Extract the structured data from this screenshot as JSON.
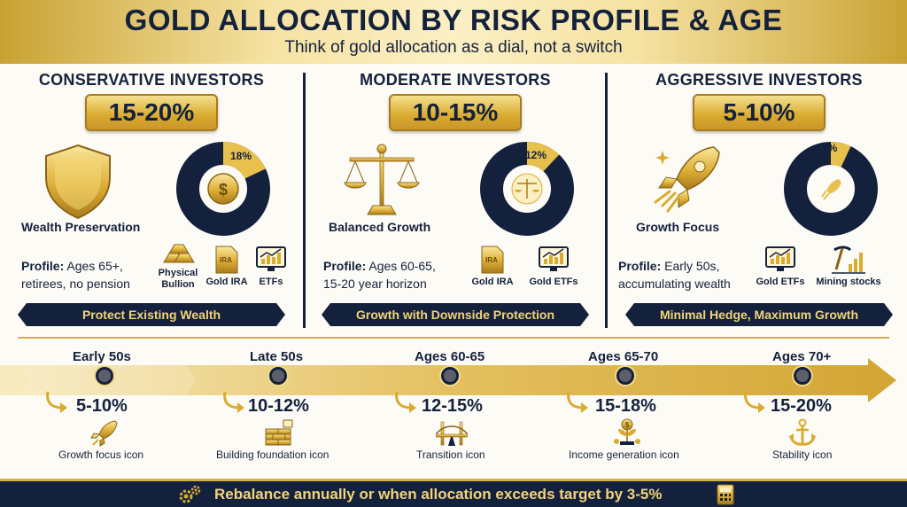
{
  "header": {
    "title": "GOLD ALLOCATION BY RISK PROFILE & AGE",
    "subtitle": "Think of gold allocation as a dial, not a switch"
  },
  "colors": {
    "navy": "#14213d",
    "gold": "#d9ab2f",
    "light_gold": "#f6e3a3"
  },
  "profiles": [
    {
      "heading": "CONSERVATIVE INVESTORS",
      "range": "15-20%",
      "focus_label": "Wealth Preservation",
      "hero_icon": "shield-icon",
      "donut_label": "18%",
      "donut_fraction": 0.18,
      "profile_label": "Profile:",
      "profile_text": "Ages 65+, retirees, no pension",
      "assets": [
        {
          "label": "Physical Bullion",
          "icon": "gold-bars-icon"
        },
        {
          "label": "Gold IRA",
          "icon": "ira-document-icon"
        },
        {
          "label": "ETFs",
          "icon": "chart-monitor-icon"
        }
      ],
      "banner": "Protect Existing Wealth"
    },
    {
      "heading": "MODERATE INVESTORS",
      "range": "10-15%",
      "focus_label": "Balanced Growth",
      "hero_icon": "scales-icon",
      "donut_label": "12%",
      "donut_fraction": 0.12,
      "profile_label": "Profile:",
      "profile_text": "Ages 60-65, 15-20 year horizon",
      "assets": [
        {
          "label": "Gold IRA",
          "icon": "ira-document-icon"
        },
        {
          "label": "Gold ETFs",
          "icon": "chart-monitor-icon"
        }
      ],
      "banner": "Growth with Downside Protection"
    },
    {
      "heading": "AGGRESSIVE INVESTORS",
      "range": "5-10%",
      "focus_label": "Growth Focus",
      "hero_icon": "rocket-icon",
      "donut_label": "7%",
      "donut_fraction": 0.07,
      "profile_label": "Profile:",
      "profile_text": "Early 50s, accumulating wealth",
      "assets": [
        {
          "label": "Gold ETFs",
          "icon": "chart-monitor-icon"
        },
        {
          "label": "Mining stocks",
          "icon": "pickaxe-chart-icon"
        }
      ],
      "banner": "Minimal Hedge, Maximum Growth"
    }
  ],
  "timeline": [
    {
      "age": "Early 50s",
      "range": "5-10%",
      "caption": "Growth focus icon",
      "icon": "rocket-icon"
    },
    {
      "age": "Late 50s",
      "range": "10-12%",
      "caption": "Building foundation icon",
      "icon": "brick-wall-icon"
    },
    {
      "age": "Ages 60-65",
      "range": "12-15%",
      "caption": "Transition icon",
      "icon": "bridge-icon"
    },
    {
      "age": "Ages 65-70",
      "range": "15-18%",
      "caption": "Income generation icon",
      "icon": "money-plant-icon"
    },
    {
      "age": "Ages 70+",
      "range": "15-20%",
      "caption": "Stability icon",
      "icon": "anchor-icon"
    }
  ],
  "footer": {
    "text": "Rebalance annually or when allocation exceeds target by 3-5%",
    "left_icon": "gears-icon",
    "right_icon": "calculator-icon"
  }
}
